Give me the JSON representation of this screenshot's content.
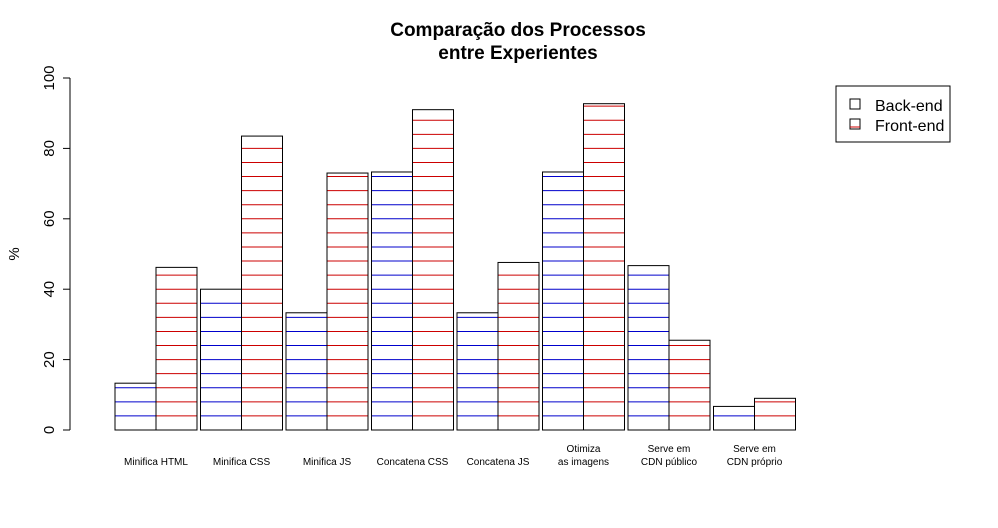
{
  "chart_data": {
    "type": "bar",
    "title": [
      "Comparação dos Processos",
      "entre Experientes"
    ],
    "xlabel": "",
    "ylabel": "%",
    "ylim": [
      0,
      100
    ],
    "yticks": [
      0,
      20,
      40,
      60,
      80,
      100
    ],
    "categories": [
      [
        "Minifica HTML"
      ],
      [
        "Minifica CSS"
      ],
      [
        "Minifica JS"
      ],
      [
        "Concatena CSS"
      ],
      [
        "Concatena JS"
      ],
      [
        "Otimiza",
        "as imagens"
      ],
      [
        "Serve em",
        "CDN público"
      ],
      [
        "Serve em",
        "CDN próprio"
      ]
    ],
    "series": [
      {
        "name": "Back-end",
        "hatch_color": "#0000cc",
        "values": [
          13.3,
          40.0,
          33.3,
          73.3,
          33.3,
          73.3,
          46.7,
          6.7
        ]
      },
      {
        "name": "Front-end",
        "hatch_color": "#cc0000",
        "values": [
          46.2,
          83.5,
          73.0,
          91.0,
          47.6,
          92.7,
          25.5,
          9.0
        ]
      }
    ],
    "grid": false,
    "legend_position": "top-right"
  },
  "colors": {
    "bar_fill": "#ffffff",
    "bar_border": "#000000"
  }
}
